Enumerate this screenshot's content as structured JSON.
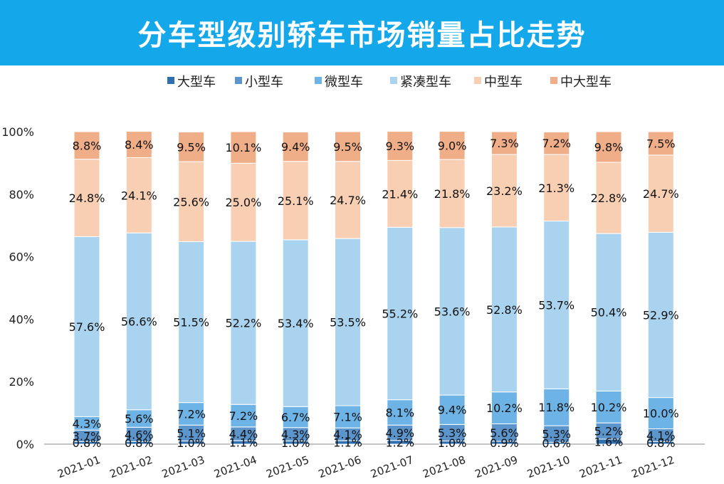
{
  "title": "分车型级别轿车市场销量占比走势",
  "colors": {
    "banner": "#14a8ea",
    "大型车": "#2e6fb0",
    "小型车": "#5b95cc",
    "微型车": "#6db3e6",
    "紧凑型车": "#a9d3ef",
    "中型车": "#f8cfb3",
    "中大型车": "#f0ae88"
  },
  "chart_data": {
    "type": "bar",
    "stacked": true,
    "normalized": true,
    "title": "分车型级别轿车市场销量占比走势",
    "xlabel": "",
    "ylabel": "",
    "ylim": [
      0,
      100
    ],
    "yticks": [
      "0%",
      "20%",
      "40%",
      "60%",
      "80%",
      "100%"
    ],
    "legend_position": "top",
    "grid": false,
    "categories": [
      "2021-01",
      "2021-02",
      "2021-03",
      "2021-04",
      "2021-05",
      "2021-06",
      "2021-07",
      "2021-08",
      "2021-09",
      "2021-10",
      "2021-11",
      "2021-12"
    ],
    "series": [
      {
        "name": "大型车",
        "values": [
          0.8,
          0.8,
          1.0,
          1.1,
          1.0,
          1.1,
          1.2,
          1.0,
          0.9,
          0.6,
          1.6,
          0.8
        ],
        "labels": [
          "0.8%",
          "0.8%",
          "1.0%",
          "1.1%",
          "1.0%",
          "1.1%",
          "1.2%",
          "1.0%",
          "0.9%",
          "0.6%",
          "1.6%",
          "0.8%"
        ]
      },
      {
        "name": "小型车",
        "values": [
          3.7,
          4.6,
          5.1,
          4.4,
          4.3,
          4.1,
          4.9,
          5.3,
          5.6,
          5.3,
          5.2,
          4.1
        ],
        "labels": [
          "3.7%",
          "4.6%",
          "5.1%",
          "4.4%",
          "4.3%",
          "4.1%",
          "4.9%",
          "5.3%",
          "5.6%",
          "5.3%",
          "5.2%",
          "4.1%"
        ]
      },
      {
        "name": "微型车",
        "values": [
          4.3,
          5.6,
          7.2,
          7.2,
          6.7,
          7.1,
          8.1,
          9.4,
          10.2,
          11.8,
          10.2,
          10.0
        ],
        "labels": [
          "4.3%",
          "5.6%",
          "7.2%",
          "7.2%",
          "6.7%",
          "7.1%",
          "8.1%",
          "9.4%",
          "10.2%",
          "11.8%",
          "10.2%",
          "10.0%"
        ]
      },
      {
        "name": "紧凑型车",
        "values": [
          57.6,
          56.6,
          51.5,
          52.2,
          53.4,
          53.5,
          55.2,
          53.6,
          52.8,
          53.7,
          50.4,
          52.9
        ],
        "labels": [
          "57.6%",
          "56.6%",
          "51.5%",
          "52.2%",
          "53.4%",
          "53.5%",
          "55.2%",
          "53.6%",
          "52.8%",
          "53.7%",
          "50.4%",
          "52.9%"
        ]
      },
      {
        "name": "中型车",
        "values": [
          24.8,
          24.1,
          25.6,
          25.0,
          25.1,
          24.7,
          21.4,
          21.8,
          23.2,
          21.3,
          22.8,
          24.7
        ],
        "labels": [
          "24.8%",
          "24.1%",
          "25.6%",
          "25.0%",
          "25.1%",
          "24.7%",
          "21.4%",
          "21.8%",
          "23.2%",
          "21.3%",
          "22.8%",
          "24.7%"
        ]
      },
      {
        "name": "中大型车",
        "values": [
          8.8,
          8.4,
          9.5,
          10.1,
          9.4,
          9.5,
          9.3,
          9.0,
          7.3,
          7.2,
          9.8,
          7.5
        ],
        "labels": [
          "8.8%",
          "8.4%",
          "9.5%",
          "10.1%",
          "9.4%",
          "9.5%",
          "9.3%",
          "9.0%",
          "7.3%",
          "7.2%",
          "9.8%",
          "7.5%"
        ]
      }
    ]
  }
}
